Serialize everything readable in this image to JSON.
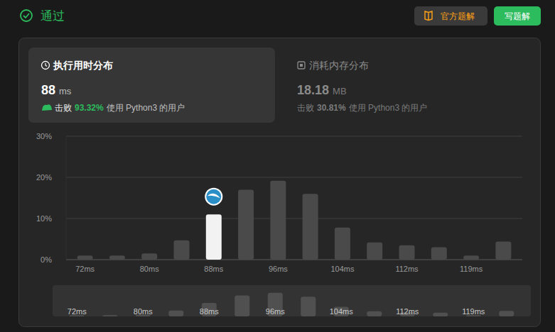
{
  "header": {
    "status": "通过",
    "solution_button": "官方题解",
    "write_button": "写题解"
  },
  "runtime_card": {
    "title": "执行用时分布",
    "value": 88,
    "unit": "ms",
    "beat_label": "击败",
    "beat": "93.32%",
    "beat_suffix": "使用 Python3 的用户"
  },
  "memory_card": {
    "title": "消耗内存分布",
    "value": 18.18,
    "unit": "MB",
    "beat_label": "击败",
    "beat": "30.81%",
    "beat_suffix": "使用 Python3 的用户"
  },
  "chart_data": {
    "type": "bar",
    "categories": [
      "72ms",
      null,
      "80ms",
      null,
      "88ms",
      null,
      "96ms",
      null,
      "104ms",
      null,
      "112ms",
      null,
      "119ms",
      null
    ],
    "values": [
      1.0,
      1.0,
      1.5,
      4.7,
      11.0,
      17.0,
      19.2,
      16.0,
      7.8,
      4.2,
      3.5,
      3.0,
      1.0,
      4.4
    ],
    "colors": [
      "#4a4a4a",
      "#4a4a4a",
      "#4a4a4a",
      "#4a4a4a",
      "#f2f2f2",
      "#4a4a4a",
      "#4a4a4a",
      "#4a4a4a",
      "#4a4a4a",
      "#4a4a4a",
      "#4a4a4a",
      "#4a4a4a",
      "#4a4a4a",
      "#4a4a4a"
    ],
    "ylim": [
      0,
      30
    ],
    "yticks": [
      {
        "value": 0,
        "label": "0%"
      },
      {
        "value": 10,
        "label": "10%"
      },
      {
        "value": 20,
        "label": "20%"
      },
      {
        "value": 30,
        "label": "30%"
      }
    ],
    "grid": true
  }
}
